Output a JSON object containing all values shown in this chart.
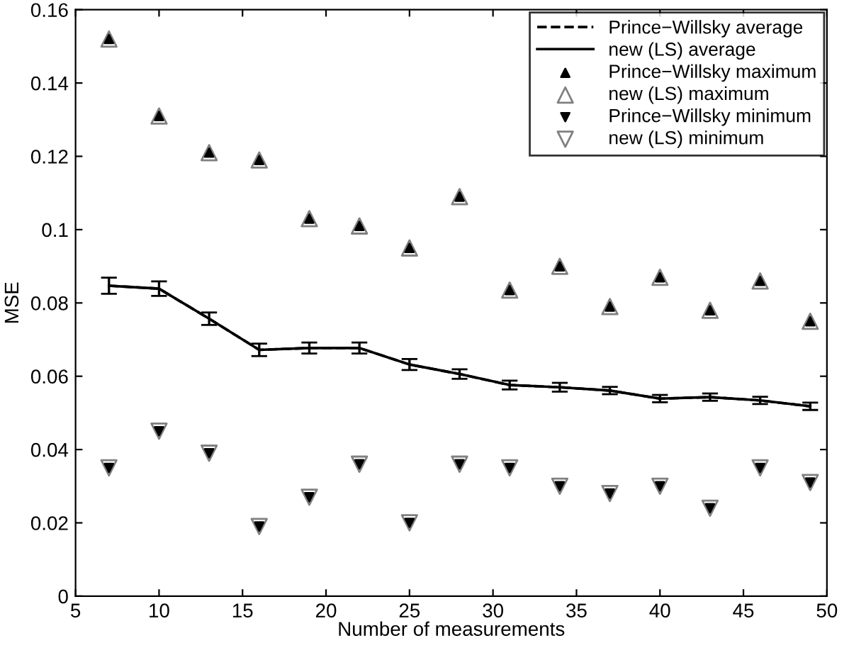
{
  "chart_data": {
    "type": "line",
    "xlabel": "Number of measurements",
    "ylabel": "MSE",
    "x": [
      7,
      10,
      13,
      16,
      19,
      22,
      25,
      28,
      31,
      34,
      37,
      40,
      43,
      46,
      49
    ],
    "xlim": [
      5,
      50
    ],
    "xticks": [
      5,
      10,
      15,
      20,
      25,
      30,
      35,
      40,
      45,
      50
    ],
    "ylim": [
      0,
      0.16
    ],
    "yticks": [
      0,
      0.02,
      0.04,
      0.06,
      0.08,
      0.1,
      0.12,
      0.14,
      0.16
    ],
    "legend": "top right",
    "grid": false,
    "series": [
      {
        "name": "Prince−Willsky average",
        "color": "#000000",
        "line_style": "dashed",
        "marker": "none",
        "values": [
          0.0847,
          0.0839,
          0.0757,
          0.0672,
          0.0677,
          0.0677,
          0.0632,
          0.0606,
          0.0576,
          0.057,
          0.0561,
          0.0539,
          0.0543,
          0.0534,
          0.0518
        ]
      },
      {
        "name": "new (LS) average",
        "color": "#000000",
        "line_style": "solid",
        "marker": "none",
        "values": [
          0.0847,
          0.0839,
          0.0757,
          0.0672,
          0.0677,
          0.0677,
          0.0632,
          0.0606,
          0.0576,
          0.057,
          0.0561,
          0.0539,
          0.0543,
          0.0534,
          0.0518
        ],
        "errors": [
          0.0022,
          0.002,
          0.0017,
          0.0017,
          0.0015,
          0.0015,
          0.0015,
          0.0013,
          0.0012,
          0.0012,
          0.001,
          0.001,
          0.001,
          0.001,
          0.001
        ]
      },
      {
        "name": "Prince−Willsky maximum",
        "type": "scatter",
        "color": "#000000",
        "marker": "triangle",
        "values": [
          0.152,
          0.131,
          0.121,
          0.119,
          0.103,
          0.101,
          0.095,
          0.109,
          0.0835,
          0.09,
          0.079,
          0.087,
          0.078,
          0.086,
          0.075
        ]
      },
      {
        "name": "new (LS) maximum",
        "type": "scatter",
        "color": "#808080",
        "marker": "triangle-open",
        "values": [
          0.152,
          0.131,
          0.121,
          0.119,
          0.103,
          0.101,
          0.095,
          0.109,
          0.0835,
          0.09,
          0.079,
          0.087,
          0.078,
          0.086,
          0.075
        ]
      },
      {
        "name": "Prince−Willsky minimum",
        "type": "scatter",
        "color": "#000000",
        "marker": "triangle-down",
        "values": [
          0.035,
          0.045,
          0.039,
          0.019,
          0.027,
          0.036,
          0.02,
          0.036,
          0.035,
          0.03,
          0.028,
          0.03,
          0.024,
          0.035,
          0.031
        ]
      },
      {
        "name": "new (LS) minimum",
        "type": "scatter",
        "color": "#808080",
        "marker": "triangle-down-open",
        "values": [
          0.035,
          0.045,
          0.039,
          0.019,
          0.027,
          0.036,
          0.02,
          0.036,
          0.035,
          0.03,
          0.028,
          0.03,
          0.024,
          0.035,
          0.031
        ]
      }
    ]
  }
}
